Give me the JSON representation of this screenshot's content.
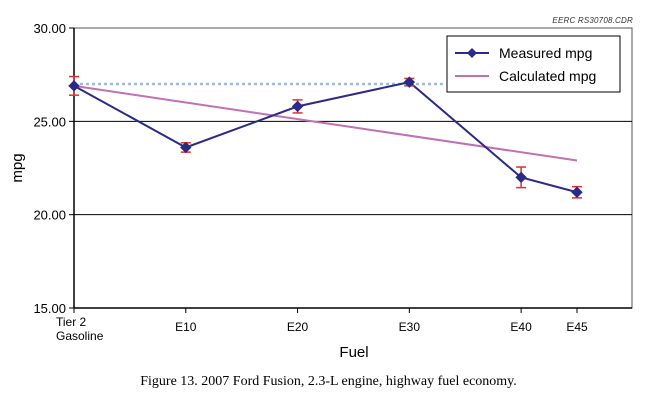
{
  "credit": "EERC RS30708.CDR",
  "caption": "Figure 13. 2007 Ford Fusion, 2.3-L engine, highway fuel economy.",
  "colors": {
    "measured": "#2b2a86",
    "calculated": "#c071b3",
    "reference": "#9fb8e8",
    "error_bar": "#e0302a",
    "grid": "#000000"
  },
  "chart_data": {
    "type": "line",
    "title": "",
    "xlabel": "Fuel",
    "ylabel": "mpg",
    "ylim": [
      15,
      30
    ],
    "yticks": [
      15,
      20,
      25,
      30
    ],
    "ytick_labels": [
      "15.00",
      "20.00",
      "25.00",
      "30.00"
    ],
    "gridlines": [
      20,
      25
    ],
    "categories": [
      "Tier 2 Gasoline",
      "E10",
      "E20",
      "E30",
      "E40",
      "E45"
    ],
    "x": [
      0,
      10,
      20,
      30,
      40,
      45
    ],
    "legend_position": "top-right",
    "series": [
      {
        "name": "Measured mpg",
        "marker": "diamond",
        "values": [
          26.9,
          23.6,
          25.8,
          27.1,
          22.0,
          21.2
        ],
        "error": [
          0.5,
          0.25,
          0.35,
          0.2,
          0.55,
          0.3
        ]
      },
      {
        "name": "Calculated mpg",
        "marker": "none",
        "values": [
          26.9,
          null,
          null,
          null,
          null,
          22.9
        ]
      }
    ],
    "reference_line": {
      "y": 27.0,
      "x_range": [
        0,
        33
      ],
      "style": "dotted"
    }
  }
}
